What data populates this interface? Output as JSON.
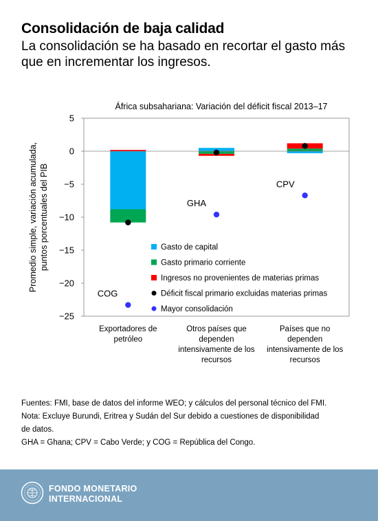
{
  "header": {
    "title": "Consolidación de baja calidad",
    "subtitle": "La consolidación se ha basado en recortar el gasto más que en incrementar los ingresos."
  },
  "chart_data": {
    "type": "bar",
    "stacked": true,
    "title": "África subsahariana: Variación del déficit fiscal 2013–17",
    "ylabel": "Promedio simple, variación acumulada, puntos porcentuales del PIB",
    "ylim": [
      -25,
      5
    ],
    "yticks": [
      5,
      0,
      -5,
      -10,
      -15,
      -20,
      -25
    ],
    "grid": false,
    "legend_position": "inside-lower-center",
    "categories": [
      [
        "Exportadores de",
        "petróleo"
      ],
      [
        "Otros países que",
        "dependen",
        "intensivamente de los",
        "recursos"
      ],
      [
        "Países que no",
        "dependen",
        "intensivamente de los",
        "recursos"
      ]
    ],
    "series": [
      {
        "name": "Gasto de capital",
        "kind": "bar",
        "color": "#00b0f0",
        "values": [
          -8.8,
          0.5,
          -0.3
        ]
      },
      {
        "name": "Gasto primario corriente",
        "kind": "bar",
        "color": "#00a651",
        "values": [
          -2.0,
          -0.4,
          0.4
        ]
      },
      {
        "name": "Ingresos no provenientes de materias primas",
        "kind": "bar",
        "color": "#ff0000",
        "values": [
          0.2,
          -0.3,
          0.8
        ]
      },
      {
        "name": "Déficit fiscal primario excluidas materias primas",
        "kind": "marker",
        "color": "#000000",
        "values": [
          -10.8,
          -0.2,
          0.8
        ]
      },
      {
        "name": "Mayor consolidación",
        "kind": "marker",
        "color": "#3333ff",
        "values": [
          -23.3,
          -9.6,
          -6.7
        ],
        "labels": [
          "COG",
          "GHA",
          "CPV"
        ]
      }
    ]
  },
  "notes": {
    "sources": "Fuentes: FMI, base de datos del informe WEO; y cálculos del personal técnico del FMI.",
    "note_line1": "Nota: Excluye Burundi, Eritrea y Sudán del Sur debido a cuestiones de disponibilidad",
    "note_line2": "de datos.",
    "abbrev": "GHA = Ghana; CPV = Cabo Verde; y COG = República del Congo."
  },
  "footer": {
    "org_line1": "FONDO MONETARIO",
    "org_line2": "INTERNACIONAL",
    "logo": "imf-seal-icon"
  }
}
